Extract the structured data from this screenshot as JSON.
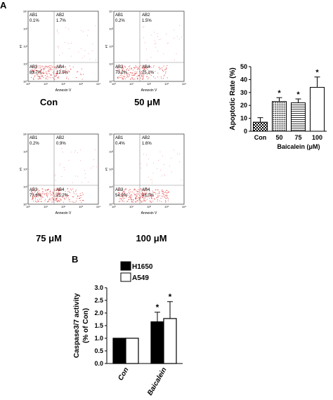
{
  "panel_a": {
    "letter": "A",
    "flow_plots": [
      {
        "title": "Con",
        "quadrants": {
          "AB1": "0.1%",
          "AB2": "1.7%",
          "AB3": "85.7%",
          "AB4": "12.5%"
        }
      },
      {
        "title": "50 μM",
        "quadrants": {
          "AB1": "0.2%",
          "AB2": "1.5%",
          "AB3": "73.2%",
          "AB4": "25.1%"
        }
      },
      {
        "title": "75 μM",
        "quadrants": {
          "AB1": "0.2%",
          "AB2": "0.9%",
          "AB3": "73.6%",
          "AB4": "25.2%"
        }
      },
      {
        "title": "100 μM",
        "quadrants": {
          "AB1": "0.4%",
          "AB2": "1.6%",
          "AB3": "54.9%",
          "AB4": "43.0%"
        }
      }
    ],
    "quadrant_names": [
      "AB1",
      "AB2",
      "AB3",
      "AB4"
    ],
    "x_axis_label": "Annexin V",
    "y_axis_label": "PI",
    "tick_labels": [
      "10⁰",
      "10¹",
      "10²",
      "10³",
      "10⁴"
    ]
  },
  "panel_b": {
    "letter": "B"
  },
  "chart_data": [
    {
      "type": "bar",
      "ylabel": "Apoptotic Rate (%)",
      "xlabel": "Baicalein  (μM)",
      "categories": [
        "Con",
        "50",
        "75",
        "100"
      ],
      "values": [
        7,
        23,
        22,
        34
      ],
      "errors": [
        3.5,
        3,
        3,
        8
      ],
      "significance": [
        "",
        "*",
        "*",
        "*"
      ],
      "ylim": [
        0,
        50
      ],
      "yticks": [
        0,
        10,
        20,
        30,
        40,
        50
      ],
      "bar_patterns": [
        "checker",
        "dots",
        "hstripes",
        "white"
      ]
    },
    {
      "type": "bar",
      "ylabel": "Caspase3/7 activity",
      "ylabel2": "(% of Con)",
      "categories": [
        "Con",
        "Baicalein"
      ],
      "series": [
        {
          "name": "H1650",
          "color": "#000000",
          "values": [
            1.0,
            1.65
          ],
          "errors": [
            0,
            0.38
          ]
        },
        {
          "name": "A549",
          "color": "#ffffff",
          "values": [
            1.0,
            1.78
          ],
          "errors": [
            0,
            0.67
          ]
        }
      ],
      "significance": [
        [
          "",
          ""
        ],
        [
          "*",
          "*"
        ]
      ],
      "ylim": [
        0,
        3.0
      ],
      "yticks": [
        "0.0",
        "0.5",
        "1.0",
        "1.5",
        "2.0",
        "2.5",
        "3.0"
      ]
    }
  ]
}
